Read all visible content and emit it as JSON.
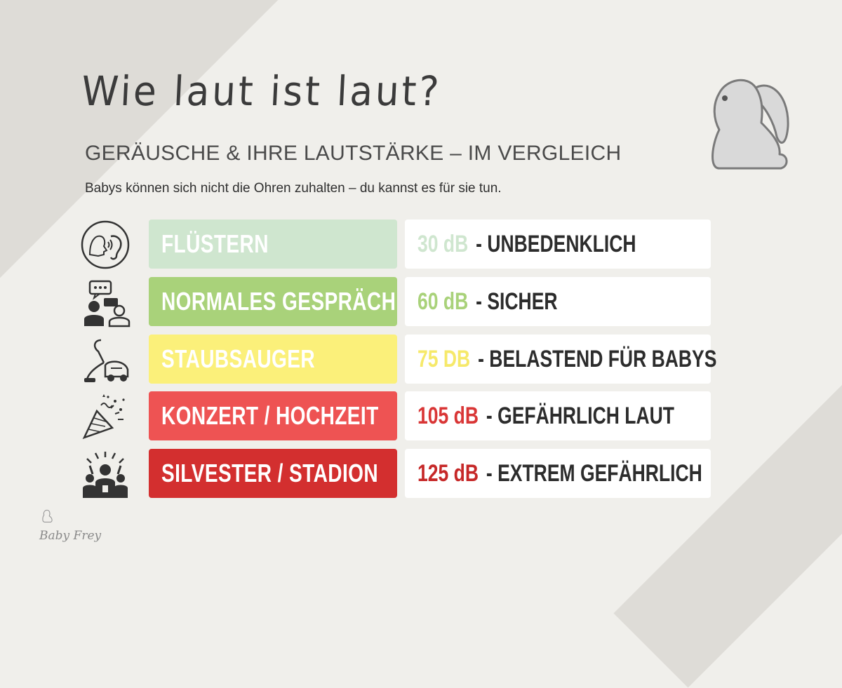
{
  "header": {
    "title": "Wie laut ist laut?",
    "subtitle": "GERÄUSCHE & IHRE LAUTSTÄRKE – IM VERGLEICH",
    "tagline": "Babys können sich nicht die Ohren zuhalten – du kannst es für sie tun."
  },
  "rows": [
    {
      "label": "FLÜSTERN",
      "db": "30 dB",
      "desc": "- UNBEDENKLICH",
      "label_bg": "#cfe6cf",
      "db_color": "#cfe6cf",
      "icon": "whisper-ear-icon"
    },
    {
      "label": "NORMALES GESPRÄCH",
      "db": "60 dB",
      "desc": "- SICHER",
      "label_bg": "#a9d27a",
      "db_color": "#a9d27a",
      "icon": "conversation-icon"
    },
    {
      "label": "STAUBSAUGER",
      "db": "75 DB",
      "desc": "- BELASTEND FÜR BABYS",
      "label_bg": "#fbf07a",
      "db_color": "#f6e96a",
      "icon": "vacuum-cleaner-icon"
    },
    {
      "label": "KONZERT / HOCHZEIT",
      "db": "105 dB",
      "desc": "- GEFÄHRLICH LAUT",
      "label_bg": "#ee5353",
      "db_color": "#d93636",
      "icon": "party-popper-icon"
    },
    {
      "label": "SILVESTER / STADION",
      "db": "125 dB",
      "desc": "- EXTREM GEFÄHRLICH",
      "label_bg": "#d32f2f",
      "db_color": "#c62828",
      "icon": "crowd-stadium-icon"
    }
  ],
  "brand": {
    "logo_text": "Baby Frey"
  }
}
